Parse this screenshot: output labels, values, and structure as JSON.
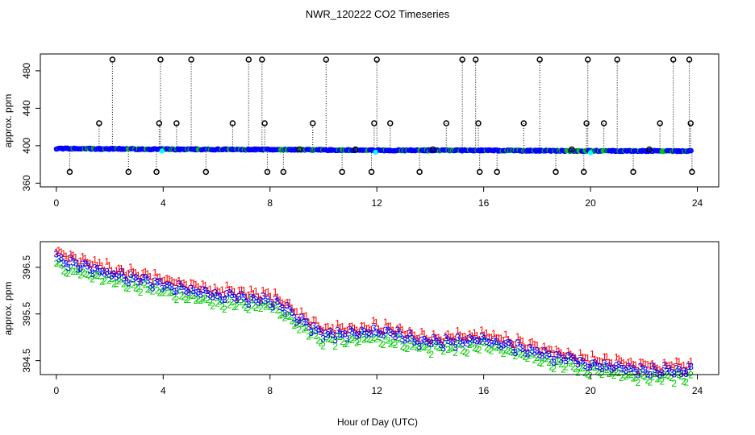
{
  "chart_data": [
    {
      "type": "scatter",
      "title": "NWR_120222  CO2 Timeseries",
      "xlabel": "",
      "ylabel": "approx. ppm",
      "xlim": [
        -0.6,
        24.8
      ],
      "ylim": [
        356,
        498
      ],
      "xticks": [
        0,
        4,
        8,
        12,
        16,
        20,
        24
      ],
      "yticks": [
        360,
        400,
        440,
        480
      ],
      "colors": {
        "spike": "#000000",
        "series_blue": "#0000ff",
        "series_green": "#00cc00",
        "series_red": "#ff0000",
        "flag": "#00ffff"
      },
      "baseline": {
        "x": [
          0,
          4,
          8,
          12,
          16,
          20,
          24
        ],
        "y": [
          397,
          396.2,
          395.9,
          395.1,
          395.0,
          394.4,
          394.3
        ]
      },
      "spikes": {
        "x": [
          0.5,
          1.6,
          2.1,
          2.7,
          3.75,
          3.85,
          3.9,
          4.5,
          5.05,
          5.6,
          6.6,
          7.2,
          7.7,
          7.8,
          7.9,
          8.5,
          9.1,
          9.6,
          10.1,
          10.7,
          11.2,
          11.8,
          11.9,
          12.0,
          12.5,
          13.6,
          14.1,
          14.6,
          15.2,
          15.7,
          15.8,
          15.85,
          16.5,
          17.5,
          18.1,
          18.7,
          19.3,
          19.75,
          19.85,
          19.9,
          20.5,
          21.0,
          21.6,
          22.2,
          22.6,
          23.1,
          23.7,
          23.75,
          23.8
        ],
        "y": [
          372,
          424,
          492,
          372,
          372,
          424,
          492,
          424,
          492,
          372,
          424,
          492,
          492,
          424,
          372,
          372,
          396,
          424,
          492,
          372,
          396,
          372,
          424,
          492,
          424,
          372,
          396,
          424,
          492,
          492,
          424,
          372,
          372,
          424,
          492,
          372,
          396,
          372,
          424,
          492,
          424,
          492,
          372,
          396,
          424,
          492,
          492,
          424,
          372
        ]
      }
    },
    {
      "type": "scatter",
      "title": "",
      "xlabel": "Hour of Day (UTC)",
      "ylabel": "approx. ppm",
      "xlim": [
        -0.6,
        24.8
      ],
      "ylim": [
        394.2,
        397.05
      ],
      "xticks": [
        0,
        4,
        8,
        12,
        16,
        20,
        24
      ],
      "yticks": [
        394.5,
        395.5,
        396.5
      ],
      "series": [
        {
          "name": "1",
          "color": "#ff0000",
          "offset": 0.12,
          "x": [
            0,
            2,
            4,
            6,
            8,
            10,
            12,
            14,
            16,
            18,
            20,
            22,
            23.8
          ],
          "values": [
            396.75,
            396.45,
            396.2,
            395.95,
            395.85,
            395.15,
            395.2,
            394.95,
            395.0,
            394.75,
            394.5,
            394.35,
            394.35
          ]
        },
        {
          "name": "2",
          "color": "#00cc00",
          "offset": -0.14,
          "x": [
            0,
            2,
            4,
            6,
            8,
            10,
            12,
            14,
            16,
            18,
            20,
            22,
            23.8
          ],
          "values": [
            396.75,
            396.45,
            396.2,
            395.95,
            395.85,
            395.15,
            395.2,
            394.95,
            395.0,
            394.75,
            394.5,
            394.35,
            394.35
          ]
        },
        {
          "name": "3",
          "color": "#0000ff",
          "offset": 0,
          "x": [
            0,
            2,
            4,
            6,
            8,
            10,
            12,
            14,
            16,
            18,
            20,
            22,
            23.8
          ],
          "values": [
            396.75,
            396.45,
            396.2,
            395.95,
            395.85,
            395.15,
            395.2,
            394.95,
            395.0,
            394.75,
            394.5,
            394.35,
            394.35
          ]
        }
      ]
    }
  ]
}
